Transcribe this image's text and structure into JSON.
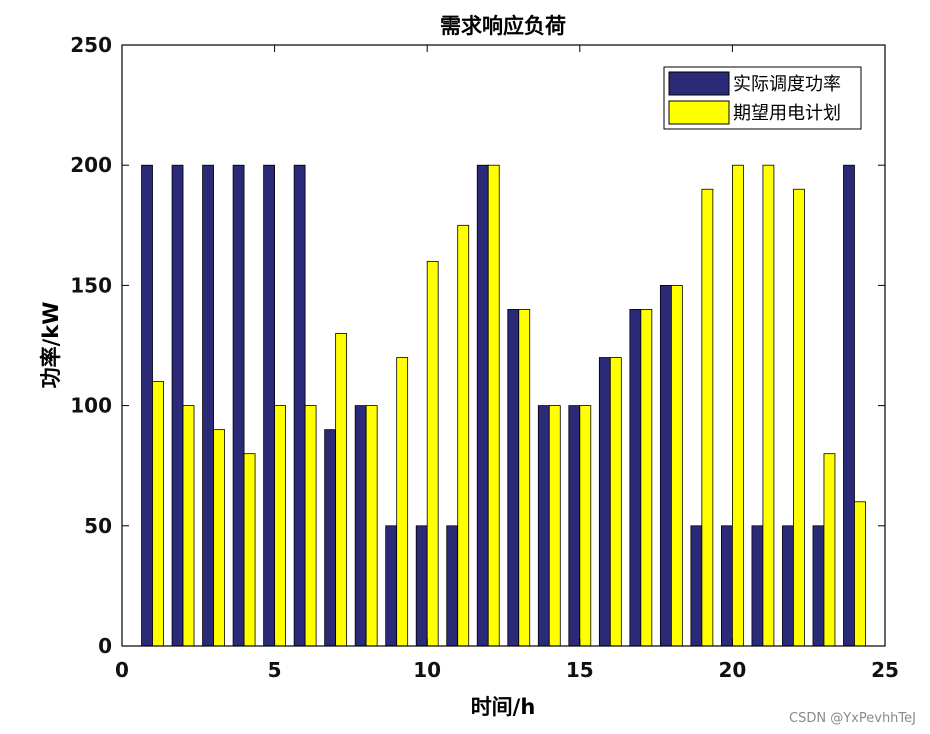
{
  "chart_data": {
    "type": "bar",
    "title": "需求响应负荷",
    "xlabel": "时间/h",
    "ylabel": "功率/kW",
    "xlim": [
      0,
      25
    ],
    "ylim": [
      0,
      250
    ],
    "xticks": [
      0,
      5,
      10,
      15,
      20,
      25
    ],
    "yticks": [
      0,
      50,
      100,
      150,
      200,
      250
    ],
    "grid": false,
    "legend_position": "top-right",
    "categories": [
      1,
      2,
      3,
      4,
      5,
      6,
      7,
      8,
      9,
      10,
      11,
      12,
      13,
      14,
      15,
      16,
      17,
      18,
      19,
      20,
      21,
      22,
      23,
      24
    ],
    "series": [
      {
        "name": "实际调度功率",
        "color": "#2b2a78",
        "values": [
          200,
          200,
          200,
          200,
          200,
          200,
          90,
          100,
          50,
          50,
          50,
          200,
          140,
          100,
          100,
          120,
          140,
          150,
          50,
          50,
          50,
          50,
          50,
          200
        ]
      },
      {
        "name": "期望用电计划",
        "color": "#ffff00",
        "values": [
          110,
          100,
          90,
          80,
          100,
          100,
          130,
          100,
          120,
          160,
          175,
          200,
          140,
          100,
          100,
          120,
          140,
          150,
          190,
          200,
          200,
          190,
          80,
          60
        ]
      }
    ]
  },
  "watermark": "CSDN @YxPevhhTeJ"
}
